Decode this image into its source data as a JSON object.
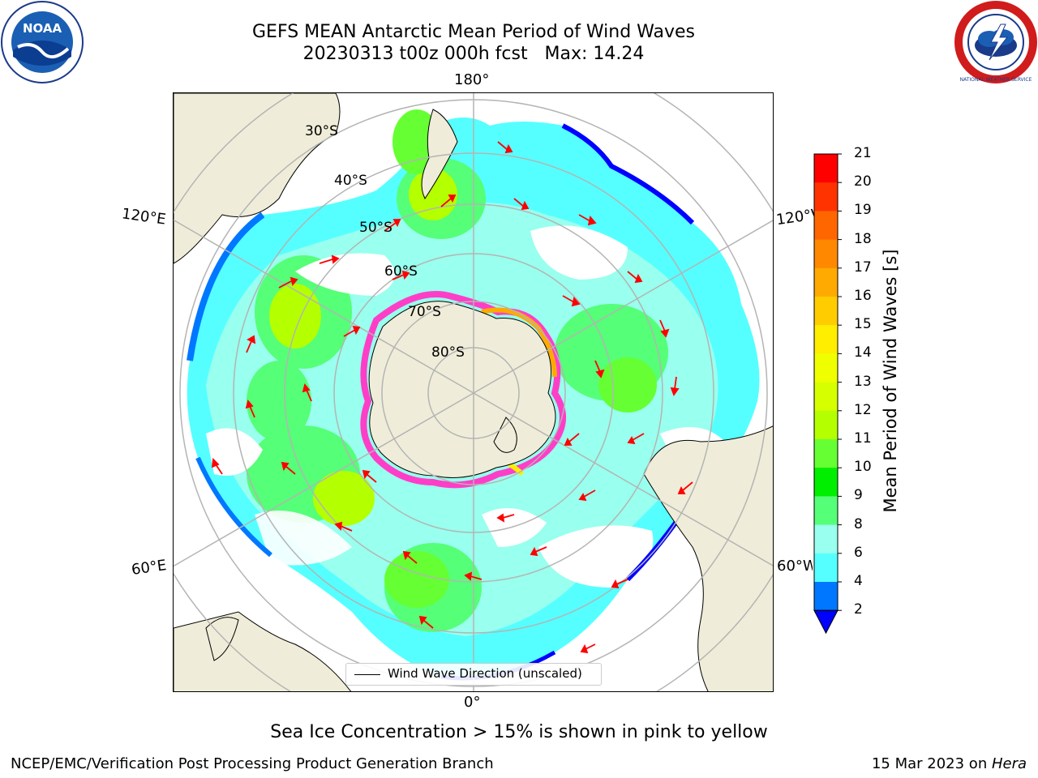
{
  "title": {
    "line1": "GEFS MEAN Antarctic Mean Period of Wind Waves",
    "line2": "20230313 t00z 000h fcst   Max: 14.24"
  },
  "logos": {
    "left": "noaa-logo",
    "left_text": "NOAA",
    "right": "nws-logo",
    "right_text": "NATIONAL WEATHER SERVICE"
  },
  "map": {
    "projection": "south-polar-stereographic",
    "longitude_labels": {
      "top": "180°",
      "bottom": "0°",
      "upper_left": "120°E",
      "upper_right": "120°W",
      "lower_left": "60°E",
      "lower_right": "60°W"
    },
    "latitude_labels": [
      "30°S",
      "40°S",
      "50°S",
      "60°S",
      "70°S",
      "80°S"
    ],
    "land_color": "#efedd9",
    "ocean_no_data_color": "#ffffff",
    "graticule_color": "#b4b4b4",
    "arrow_color": "#ff0000",
    "ice_color_low": "#ff3ec8",
    "ice_color_high": "#ffff66"
  },
  "legend": {
    "entry": "Wind Wave Direction (unscaled)"
  },
  "colorbar": {
    "label": "Mean Period of Wind Waves [s]",
    "ticks": [
      "21",
      "20",
      "19",
      "18",
      "17",
      "16",
      "15",
      "14",
      "13",
      "12",
      "11",
      "10",
      "9",
      "8",
      "6",
      "4",
      "2"
    ],
    "colors": [
      "#ff0000",
      "#ff3300",
      "#ff6600",
      "#ff8800",
      "#ffaa00",
      "#ffcc00",
      "#ffee00",
      "#f0ff00",
      "#d6ff00",
      "#b4ff00",
      "#66ff33",
      "#00ee00",
      "#55ff77",
      "#99ffee",
      "#55ffff",
      "#00ffff",
      "#0077ff"
    ],
    "extend_color": "#0000ff"
  },
  "caption": "Sea Ice Concentration > 15% is shown in pink to yellow",
  "footer": {
    "left": "NCEP/EMC/Verification Post Processing Product Generation Branch",
    "right_prefix": "15 Mar 2023 on ",
    "right_machine": "Hera"
  }
}
